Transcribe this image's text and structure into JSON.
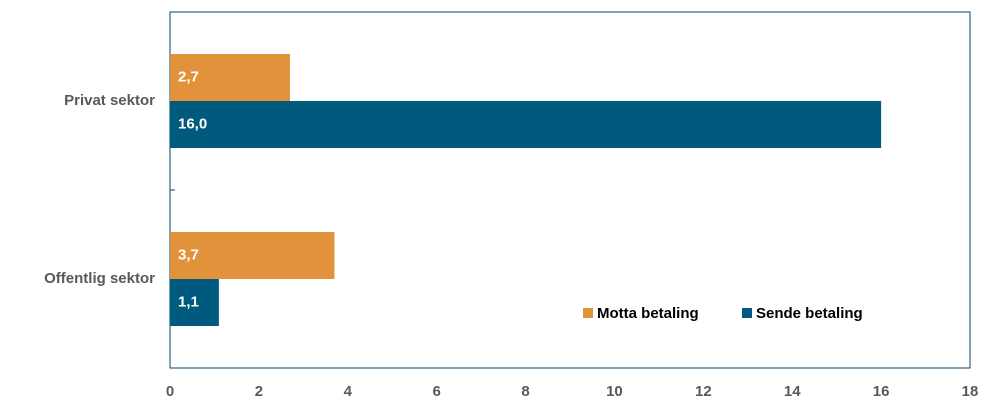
{
  "chart_data": {
    "type": "hbar",
    "categories": [
      "Privat sektor",
      "Offentlig sektor"
    ],
    "series": [
      {
        "name": "Motta betaling",
        "color": "#e2923b",
        "values": [
          2.7,
          3.7
        ],
        "value_labels": [
          "2,7",
          "3,7"
        ]
      },
      {
        "name": "Sende betaling",
        "color": "#005a7d",
        "values": [
          16.0,
          1.1
        ],
        "value_labels": [
          "16,0",
          "1,1"
        ]
      }
    ],
    "xlim": [
      0,
      18
    ],
    "xticks": [
      0,
      2,
      4,
      6,
      8,
      10,
      12,
      14,
      16,
      18
    ],
    "legend": "lower right"
  }
}
